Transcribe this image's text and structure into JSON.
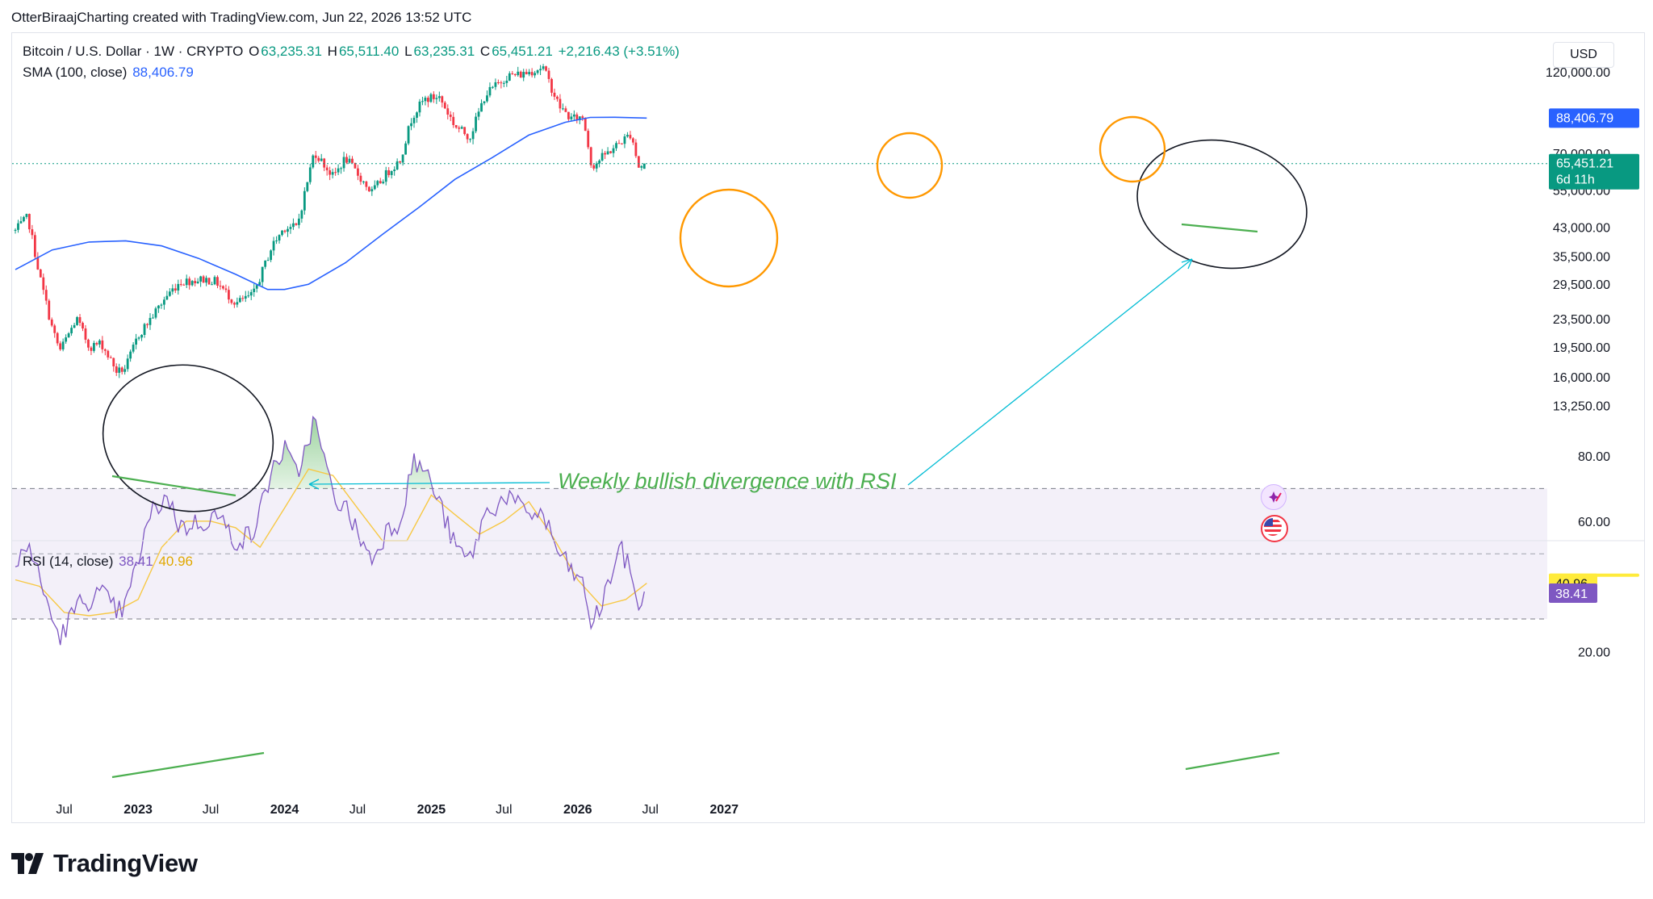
{
  "attribution": "OtterBiraajCharting created with TradingView.com, Jun 22, 2026 13:52 UTC",
  "legend": {
    "symbol": "Bitcoin / U.S. Dollar · 1W · CRYPTO",
    "open_label": "O",
    "open": "63,235.31",
    "high_label": "H",
    "high": "65,511.40",
    "low_label": "L",
    "low": "63,235.31",
    "close_label": "C",
    "close": "65,451.21",
    "change": "+2,216.43 (+3.51%)",
    "sma_label": "SMA (100, close)",
    "sma_value": "88,406.79",
    "rsi_label": "RSI (14, close)",
    "rsi_value": "38.41",
    "rsi_ma_value": "40.96"
  },
  "currency": "USD",
  "annotation": "Weekly bullish divergence with RSI",
  "logo_text": "TradingView",
  "price_badges": {
    "sma": "88,406.79",
    "last": "65,451.21",
    "countdown": "6d 11h",
    "rsi_ma": "40.96",
    "rsi": "38.41"
  },
  "colors": {
    "up": "#089981",
    "down": "#f23645",
    "sma": "#2962ff",
    "rsi": "#7e57c2",
    "rsi_ma": "#f7c844",
    "annotation": "#4caf50",
    "circle_orange": "#ff9800",
    "arrow": "#00bcd4"
  },
  "chart_data": [
    {
      "type": "line",
      "title": "Bitcoin / U.S. Dollar · 1W · CRYPTO",
      "log_scale": true,
      "y_ticks": [
        "120,000.00",
        "70,000.00",
        "55,000.00",
        "43,000.00",
        "35,500.00",
        "29,500.00",
        "23,500.00",
        "19,500.00",
        "16,000.00",
        "13,250.00"
      ],
      "y_tick_values": [
        120000,
        70000,
        55000,
        43000,
        35500,
        29500,
        23500,
        19500,
        16000,
        13250
      ],
      "x_ticks": [
        "Jul",
        "2023",
        "Jul",
        "2024",
        "Jul",
        "2025",
        "Jul",
        "2026",
        "Jul",
        "2027"
      ],
      "x_tick_dates": [
        "2022-07-01",
        "2023-01-01",
        "2023-07-01",
        "2024-01-01",
        "2024-07-01",
        "2025-01-01",
        "2025-07-01",
        "2026-01-01",
        "2026-07-01",
        "2027-01-01"
      ],
      "series": [
        {
          "name": "Bitcoin / U.S. Dollar",
          "x": [
            "2022-03-01",
            "2022-04-01",
            "2022-05-01",
            "2022-06-01",
            "2022-06-20",
            "2022-08-01",
            "2022-09-01",
            "2022-10-01",
            "2022-11-10",
            "2022-12-01",
            "2023-01-01",
            "2023-02-01",
            "2023-03-15",
            "2023-04-15",
            "2023-06-15",
            "2023-07-15",
            "2023-09-01",
            "2023-10-15",
            "2023-12-01",
            "2024-01-01",
            "2024-02-01",
            "2024-03-15",
            "2024-05-01",
            "2024-06-01",
            "2024-08-05",
            "2024-09-15",
            "2024-10-15",
            "2024-11-15",
            "2024-12-15",
            "2025-01-20",
            "2025-03-01",
            "2025-04-07",
            "2025-05-15",
            "2025-07-10",
            "2025-08-15",
            "2025-10-06",
            "2025-11-15",
            "2025-12-15",
            "2026-01-15",
            "2026-02-05",
            "2026-03-01",
            "2026-04-15",
            "2026-05-15",
            "2026-06-01",
            "2026-06-22"
          ],
          "values": [
            42000,
            46000,
            31000,
            22000,
            19000,
            23500,
            19500,
            20000,
            16500,
            17000,
            21000,
            23500,
            27500,
            30000,
            30500,
            30000,
            26000,
            27500,
            38000,
            43000,
            43000,
            71000,
            60000,
            68000,
            54000,
            62000,
            67000,
            90000,
            100000,
            102000,
            84000,
            78000,
            103000,
            117000,
            118000,
            124000,
            96000,
            88000,
            89000,
            64000,
            68000,
            75000,
            80000,
            64000,
            65451
          ]
        },
        {
          "name": "SMA (100, close)",
          "x": [
            "2022-03-01",
            "2022-06-01",
            "2022-09-01",
            "2022-12-01",
            "2023-03-01",
            "2023-06-01",
            "2023-09-01",
            "2023-11-20",
            "2024-01-01",
            "2024-03-01",
            "2024-06-01",
            "2024-09-01",
            "2024-12-01",
            "2025-03-01",
            "2025-06-01",
            "2025-09-01",
            "2025-12-01",
            "2026-02-01",
            "2026-04-01",
            "2026-06-22"
          ],
          "values": [
            32500,
            37000,
            39000,
            39300,
            38000,
            35000,
            31500,
            28500,
            28500,
            29500,
            34000,
            41000,
            49000,
            59000,
            68000,
            79000,
            86000,
            88800,
            88900,
            88406.79
          ]
        }
      ]
    },
    {
      "type": "line",
      "title": "RSI (14, close)",
      "y_ticks": [
        "80.00",
        "60.00",
        "20.00"
      ],
      "y_tick_values": [
        80,
        60,
        20
      ],
      "band": [
        30,
        70
      ],
      "midline": 50,
      "series": [
        {
          "name": "RSI (14, close)",
          "x": [
            "2022-03-01",
            "2022-04-01",
            "2022-05-01",
            "2022-06-01",
            "2022-06-20",
            "2022-08-01",
            "2022-09-01",
            "2022-10-01",
            "2022-11-10",
            "2022-12-01",
            "2023-01-01",
            "2023-02-01",
            "2023-03-15",
            "2023-04-15",
            "2023-06-15",
            "2023-07-15",
            "2023-09-01",
            "2023-10-15",
            "2023-12-01",
            "2024-01-01",
            "2024-02-01",
            "2024-03-15",
            "2024-05-01",
            "2024-06-01",
            "2024-08-05",
            "2024-09-15",
            "2024-10-15",
            "2024-11-15",
            "2024-12-15",
            "2025-01-20",
            "2025-03-01",
            "2025-04-07",
            "2025-05-15",
            "2025-07-10",
            "2025-08-15",
            "2025-10-06",
            "2025-11-15",
            "2025-12-15",
            "2026-01-15",
            "2026-02-05",
            "2026-03-01",
            "2026-04-15",
            "2026-05-15",
            "2026-06-01",
            "2026-06-22"
          ],
          "values": [
            45,
            54,
            42,
            30,
            24,
            34,
            36,
            38,
            32,
            34,
            48,
            62,
            68,
            58,
            60,
            62,
            54,
            56,
            76,
            82,
            74,
            91,
            68,
            64,
            48,
            58,
            60,
            78,
            76,
            66,
            52,
            48,
            62,
            68,
            63,
            62,
            50,
            45,
            40,
            28,
            34,
            52,
            44,
            34,
            38.41
          ]
        },
        {
          "name": "RSI MA",
          "x": [
            "2022-03-01",
            "2022-05-01",
            "2022-07-01",
            "2022-09-01",
            "2022-11-01",
            "2023-01-01",
            "2023-03-01",
            "2023-05-01",
            "2023-07-01",
            "2023-09-01",
            "2023-11-01",
            "2024-01-01",
            "2024-03-01",
            "2024-05-01",
            "2024-07-01",
            "2024-09-01",
            "2024-11-01",
            "2025-01-01",
            "2025-03-01",
            "2025-05-01",
            "2025-07-01",
            "2025-09-01",
            "2025-11-01",
            "2026-01-01",
            "2026-03-01",
            "2026-05-01",
            "2026-06-22"
          ],
          "values": [
            42,
            40,
            32,
            31,
            32,
            36,
            52,
            60,
            60,
            58,
            52,
            64,
            76,
            74,
            64,
            54,
            54,
            68,
            62,
            56,
            60,
            66,
            55,
            42,
            34,
            36,
            40.96
          ]
        }
      ]
    }
  ]
}
